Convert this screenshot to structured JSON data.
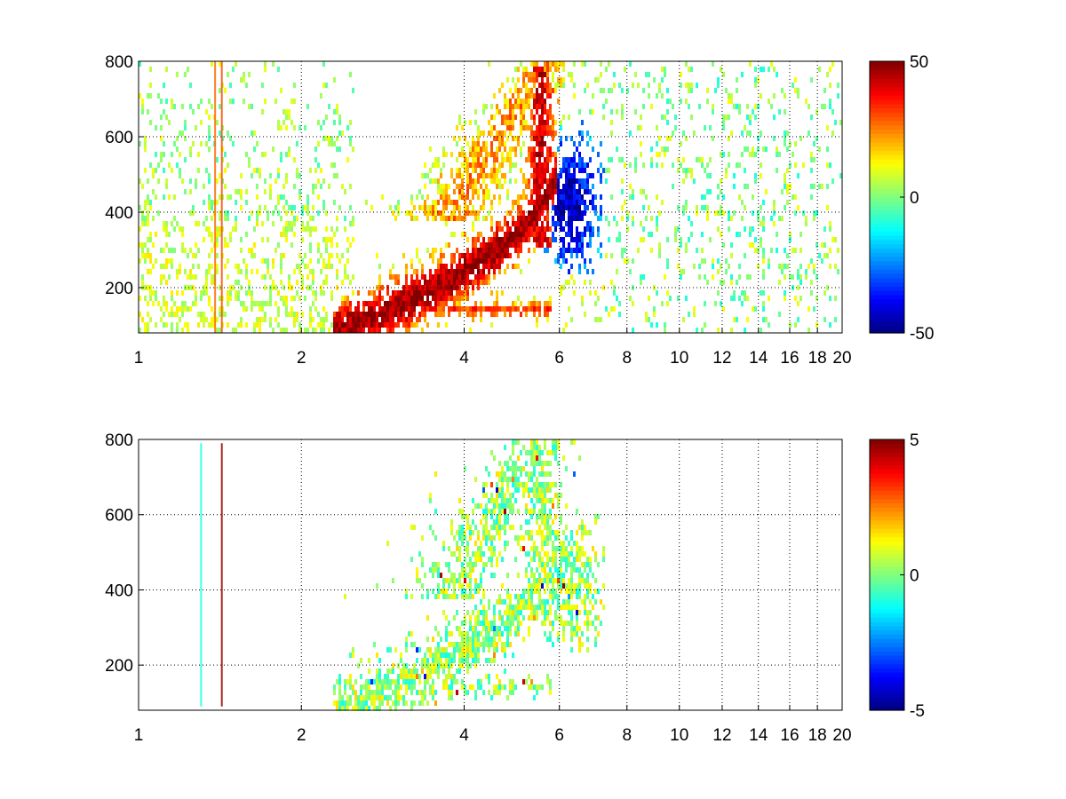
{
  "chart_data": [
    {
      "type": "heatmap",
      "title": "",
      "xlabel": "",
      "ylabel": "",
      "x_scale": "log",
      "xlim": [
        1,
        20
      ],
      "ylim": [
        80,
        800
      ],
      "x_ticks": [
        1,
        2,
        4,
        6,
        8,
        10,
        12,
        14,
        16,
        18,
        20
      ],
      "x_tick_labels": [
        "1",
        "2",
        "4",
        "6",
        "8",
        "10",
        "12",
        "14",
        "16",
        "18",
        "20"
      ],
      "y_ticks": [
        200,
        400,
        600,
        800
      ],
      "y_tick_labels": [
        "200",
        "400",
        "600",
        "800"
      ],
      "grid": true,
      "colormap": "jet",
      "colorbar": {
        "min": -50,
        "max": 50,
        "tick_labels": [
          "50",
          "0",
          "-50"
        ],
        "tick_values": [
          50,
          0,
          -50
        ]
      },
      "features": [
        {
          "x_range": [
            2.5,
            5.9
          ],
          "y_range": [
            100,
            600
          ],
          "value": 40,
          "shape": "rising ridge"
        },
        {
          "x_range": [
            3.0,
            5.9
          ],
          "y_range": [
            380,
            800
          ],
          "value": 15,
          "shape": "upper arc"
        },
        {
          "x_range": [
            5.8,
            7.2
          ],
          "y_range": [
            250,
            600
          ],
          "value": -28,
          "shape": "negative band"
        },
        {
          "x_range": [
            6.0,
            20
          ],
          "y_range": [
            80,
            800
          ],
          "value": 0,
          "shape": "sparse scatter"
        }
      ]
    },
    {
      "type": "heatmap",
      "title": "",
      "xlabel": "",
      "ylabel": "",
      "x_scale": "log",
      "xlim": [
        1,
        20
      ],
      "ylim": [
        80,
        800
      ],
      "x_ticks": [
        1,
        2,
        4,
        6,
        8,
        10,
        12,
        14,
        16,
        18,
        20
      ],
      "x_tick_labels": [
        "1",
        "2",
        "4",
        "6",
        "8",
        "10",
        "12",
        "14",
        "16",
        "18",
        "20"
      ],
      "y_ticks": [
        200,
        400,
        600,
        800
      ],
      "y_tick_labels": [
        "200",
        "400",
        "600",
        "800"
      ],
      "grid": true,
      "colormap": "jet",
      "colorbar": {
        "min": -5,
        "max": 5,
        "tick_labels": [
          "5",
          "0",
          "-5"
        ],
        "tick_values": [
          5,
          0,
          -5
        ]
      },
      "features": [
        {
          "x_range": [
            2.5,
            5.9
          ],
          "y_range": [
            100,
            600
          ],
          "value": 0.5,
          "shape": "rising ridge"
        },
        {
          "x_range": [
            3.0,
            5.9
          ],
          "y_range": [
            380,
            780
          ],
          "value": 0.5,
          "shape": "upper arc"
        },
        {
          "x_range": [
            5.8,
            7.2
          ],
          "y_range": [
            250,
            600
          ],
          "value": 0.5,
          "shape": "negative band"
        }
      ]
    }
  ]
}
